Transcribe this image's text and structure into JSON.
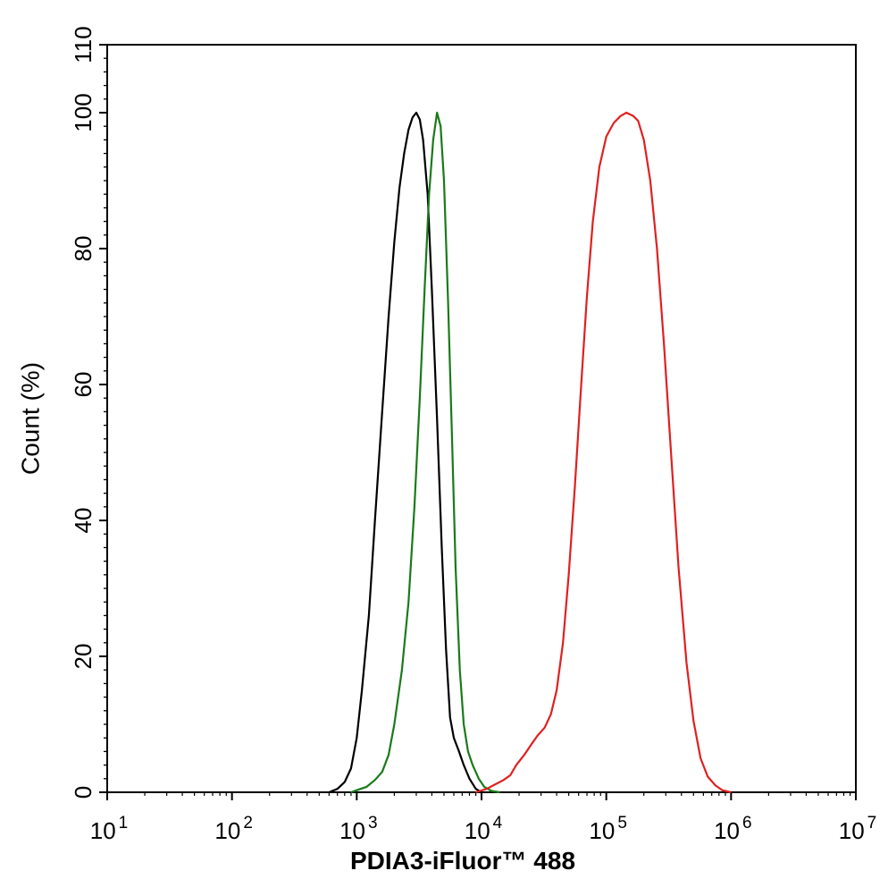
{
  "chart_data": {
    "type": "line",
    "title": "",
    "xlabel": "PDIA3-iFluor™ 488",
    "ylabel": "Count (%)",
    "x_scale": "log",
    "xlim": [
      10,
      10000000
    ],
    "ylim": [
      0,
      110
    ],
    "x_tick_labels": [
      {
        "base": "10",
        "exp": "1"
      },
      {
        "base": "10",
        "exp": "2"
      },
      {
        "base": "10",
        "exp": "3"
      },
      {
        "base": "10",
        "exp": "4"
      },
      {
        "base": "10",
        "exp": "5"
      },
      {
        "base": "10",
        "exp": "6"
      },
      {
        "base": "10",
        "exp": "7"
      }
    ],
    "y_ticks": [
      0,
      20,
      40,
      60,
      80,
      100
    ],
    "y_tick_labels": [
      "0",
      "20",
      "40",
      "60",
      "80",
      "100"
    ],
    "y_top_label": "110",
    "grid": false,
    "legend": "none",
    "series": [
      {
        "color": "#000000",
        "points": [
          [
            600,
            0
          ],
          [
            700,
            0.5
          ],
          [
            800,
            1.5
          ],
          [
            900,
            3.5
          ],
          [
            1000,
            8
          ],
          [
            1100,
            15
          ],
          [
            1250,
            26
          ],
          [
            1400,
            40
          ],
          [
            1600,
            56
          ],
          [
            1800,
            70
          ],
          [
            2000,
            81
          ],
          [
            2200,
            89
          ],
          [
            2400,
            94
          ],
          [
            2600,
            97.5
          ],
          [
            2800,
            99.3
          ],
          [
            3000,
            100
          ],
          [
            3200,
            99
          ],
          [
            3400,
            96
          ],
          [
            3700,
            88
          ],
          [
            4000,
            74
          ],
          [
            4400,
            55
          ],
          [
            4800,
            36
          ],
          [
            5200,
            21
          ],
          [
            5600,
            11
          ],
          [
            6000,
            8
          ],
          [
            6600,
            6
          ],
          [
            7200,
            4
          ],
          [
            8000,
            2
          ],
          [
            9000,
            0.5
          ],
          [
            10000,
            0
          ]
        ]
      },
      {
        "color": "#1a7a1a",
        "points": [
          [
            900,
            0
          ],
          [
            1000,
            0.3
          ],
          [
            1200,
            0.8
          ],
          [
            1400,
            1.8
          ],
          [
            1600,
            3
          ],
          [
            1800,
            5.5
          ],
          [
            2000,
            10
          ],
          [
            2300,
            18
          ],
          [
            2600,
            28
          ],
          [
            2900,
            42
          ],
          [
            3200,
            58
          ],
          [
            3500,
            74
          ],
          [
            3800,
            88
          ],
          [
            4100,
            96
          ],
          [
            4400,
            100
          ],
          [
            4700,
            98
          ],
          [
            5000,
            90
          ],
          [
            5400,
            72
          ],
          [
            5800,
            52
          ],
          [
            6200,
            33
          ],
          [
            6700,
            18
          ],
          [
            7200,
            10
          ],
          [
            7800,
            6
          ],
          [
            8500,
            4
          ],
          [
            9500,
            2
          ],
          [
            10500,
            0.8
          ],
          [
            12000,
            0.2
          ],
          [
            14000,
            0
          ]
        ]
      },
      {
        "color": "#e02020",
        "points": [
          [
            9000,
            0
          ],
          [
            11000,
            0.5
          ],
          [
            13000,
            1.2
          ],
          [
            15000,
            1.8
          ],
          [
            17000,
            2.5
          ],
          [
            19000,
            4
          ],
          [
            22000,
            5.5
          ],
          [
            25000,
            7
          ],
          [
            28000,
            8.3
          ],
          [
            32000,
            9.5
          ],
          [
            36000,
            11.5
          ],
          [
            40000,
            15
          ],
          [
            45000,
            22
          ],
          [
            50000,
            32
          ],
          [
            56000,
            45
          ],
          [
            63000,
            60
          ],
          [
            70000,
            73
          ],
          [
            78000,
            84
          ],
          [
            88000,
            92
          ],
          [
            100000,
            96.5
          ],
          [
            115000,
            98.5
          ],
          [
            130000,
            99.5
          ],
          [
            145000,
            100
          ],
          [
            165000,
            99.5
          ],
          [
            180000,
            98.8
          ],
          [
            200000,
            96
          ],
          [
            225000,
            90
          ],
          [
            255000,
            80
          ],
          [
            290000,
            66
          ],
          [
            330000,
            50
          ],
          [
            380000,
            33
          ],
          [
            440000,
            19
          ],
          [
            500000,
            10.5
          ],
          [
            570000,
            5
          ],
          [
            650000,
            2.3
          ],
          [
            750000,
            1
          ],
          [
            850000,
            0.3
          ],
          [
            1000000,
            0
          ]
        ]
      }
    ]
  }
}
